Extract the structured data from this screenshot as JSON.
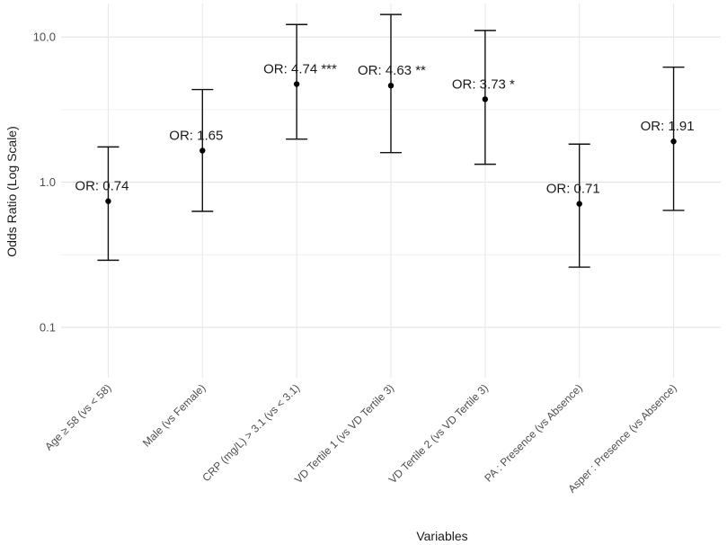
{
  "chart_data": {
    "type": "scatter",
    "subtype": "error-bar",
    "title": "",
    "xlabel": "Variables",
    "ylabel": "Odds Ratio (Log Scale)",
    "yscale": "log",
    "ylim": [
      0.045,
      17
    ],
    "yticks": [
      {
        "value": 0.1,
        "label": "0.1"
      },
      {
        "value": 1.0,
        "label": "1.0"
      },
      {
        "value": 10.0,
        "label": "10.0"
      }
    ],
    "grid": true,
    "categories": [
      "Age ≥ 58 (vs < 58)",
      "Male (vs Female)",
      "CRP (mg/L) > 3.1 (vs < 3.1)",
      "VD Tertile 1 (vs VD Tertile 3)",
      "VD Tertile 2 (vs VD Tertile 3)",
      "PA : Presence (vs Absence)",
      "Asper : Presence (vs Absence)"
    ],
    "or": [
      0.74,
      1.65,
      4.74,
      4.63,
      3.73,
      0.71,
      1.91
    ],
    "lower": [
      0.29,
      0.63,
      1.98,
      1.6,
      1.33,
      0.26,
      0.64
    ],
    "upper": [
      1.75,
      4.35,
      12.2,
      14.3,
      11.1,
      1.83,
      6.2
    ],
    "labels": [
      "OR: 0.74",
      "OR: 1.65",
      "OR: 4.74 ***",
      "OR: 4.63 **",
      "OR: 3.73 *",
      "OR: 0.71",
      "OR: 1.91"
    ]
  }
}
